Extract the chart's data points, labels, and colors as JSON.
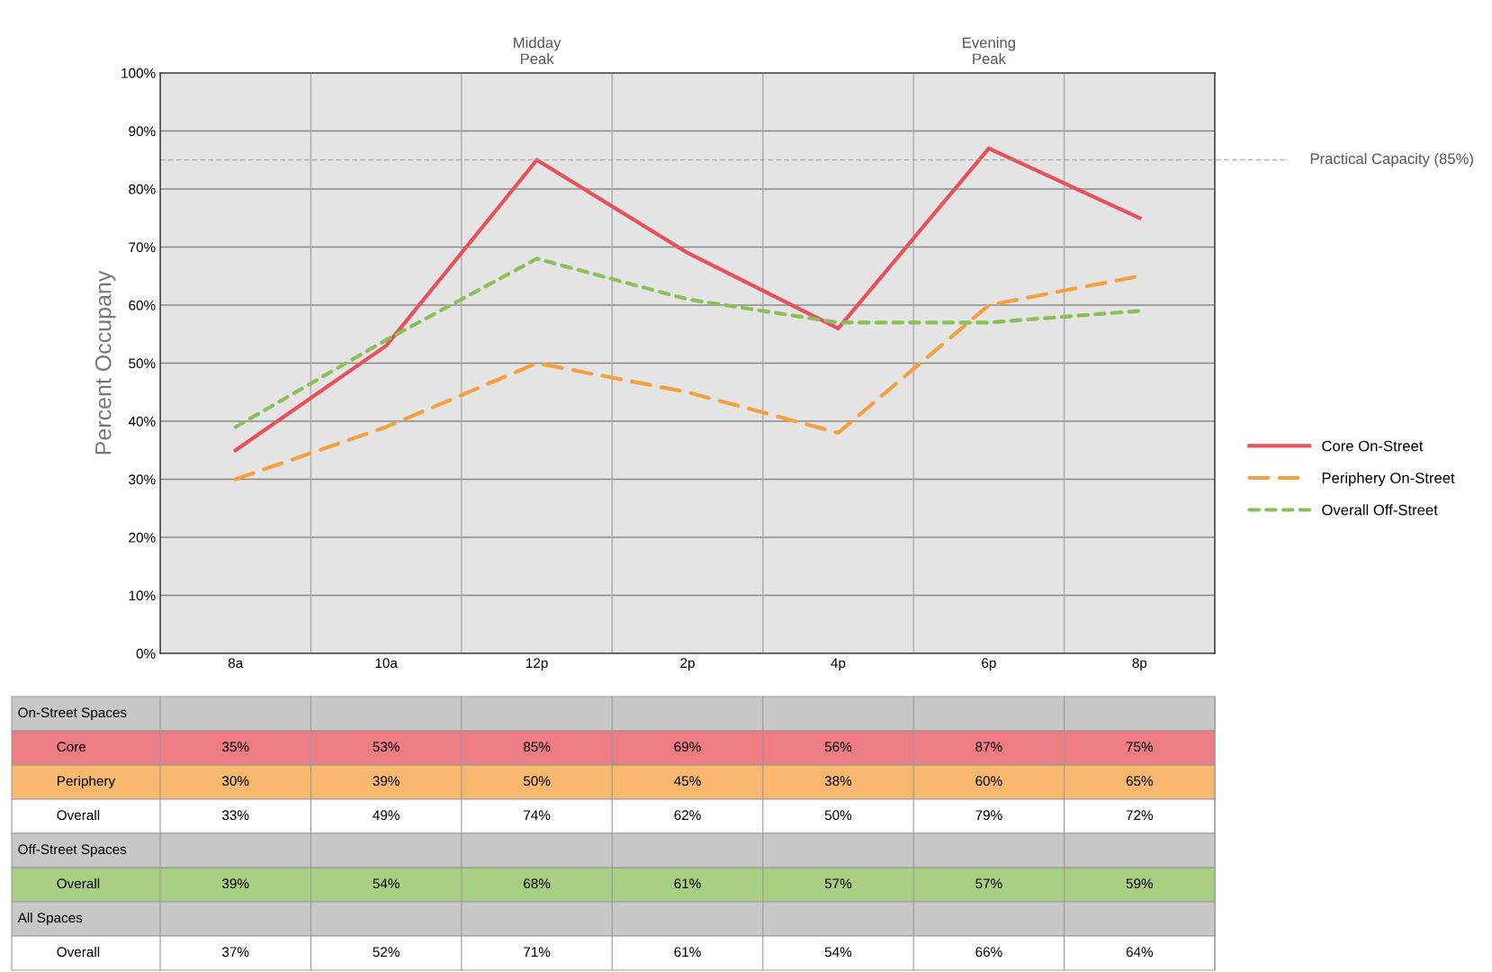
{
  "chart_data": {
    "type": "line",
    "ylabel": "Percent Occupany",
    "categories": [
      "8a",
      "10a",
      "12p",
      "2p",
      "4p",
      "6p",
      "8p"
    ],
    "series": [
      {
        "name": "Core On-Street",
        "color": "#e8505b",
        "line_style": "solid",
        "values": [
          35,
          53,
          85,
          69,
          56,
          87,
          75
        ],
        "value_labels": [
          "35%",
          "53%",
          "85%",
          "69%",
          "56%",
          "87%",
          "75%"
        ]
      },
      {
        "name": "Periphery On-Street",
        "color": "#f5a040",
        "line_style": "dashed",
        "values": [
          30,
          39,
          50,
          45,
          38,
          60,
          65
        ],
        "value_labels": [
          "30%",
          "39%",
          "50%",
          "45%",
          "38%",
          "60%",
          "65%"
        ]
      },
      {
        "values": [
          null,
          null,
          null,
          null,
          null,
          null,
          null
        ],
        "value_labels": [
          "33%",
          "49%",
          "74%",
          "62%",
          "50%",
          "79%",
          "72%"
        ]
      },
      {
        "name": "Overall Off-Street",
        "color": "#8cbf5a",
        "line_style": "dotted",
        "values": [
          39,
          54,
          68,
          61,
          57,
          57,
          59
        ],
        "value_labels": [
          "39%",
          "54%",
          "68%",
          "61%",
          "57%",
          "57%",
          "59%"
        ]
      },
      {
        "values": [
          null,
          null,
          null,
          null,
          null,
          null,
          null
        ],
        "value_labels": [
          "37%",
          "52%",
          "71%",
          "61%",
          "54%",
          "66%",
          "64%"
        ]
      }
    ],
    "ylim": [
      0,
      100
    ],
    "yticks": [
      {
        "value": 0,
        "label": "0%"
      },
      {
        "value": 10,
        "label": "10%"
      },
      {
        "value": 20,
        "label": "20%"
      },
      {
        "value": 30,
        "label": "30%"
      },
      {
        "value": 40,
        "label": "40%"
      },
      {
        "value": 50,
        "label": "50%"
      },
      {
        "value": 60,
        "label": "60%"
      },
      {
        "value": 70,
        "label": "70%"
      },
      {
        "value": 80,
        "label": "80%"
      },
      {
        "value": 90,
        "label": "90%"
      },
      {
        "value": 100,
        "label": "100%"
      }
    ],
    "ref_lines": [
      {
        "axis": "y",
        "value": 85,
        "label": "Practical Capacity (85%)",
        "color": "#999999",
        "line_style": "dashed"
      }
    ],
    "annotations": [
      "Midday\nPeak",
      "Evening\nPeak",
      "On-Street Spaces",
      "Core",
      "Periphery",
      "Overall",
      "Off-Street Spaces",
      "Overall",
      "All Spaces",
      "Overall"
    ],
    "grid": true,
    "legend": "right",
    "marker": "none"
  }
}
